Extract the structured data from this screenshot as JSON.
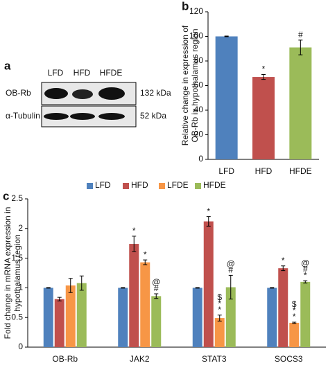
{
  "panel_labels": [
    "a",
    "b",
    "c"
  ],
  "blot": {
    "lanes": [
      "LFD",
      "HFD",
      "HFDE"
    ],
    "rows": [
      {
        "protein": "OB-Rb",
        "size": "132 kDa"
      },
      {
        "protein": "α-Tubulin",
        "size": "52 kDa"
      }
    ]
  },
  "chart_data": [
    {
      "type": "bar",
      "ylabel": [
        "Relative change in expression of",
        "OB-Rb in hypothalamus region"
      ],
      "categories": [
        "LFD",
        "HFD",
        "HFDE"
      ],
      "values": [
        100,
        67,
        91
      ],
      "errors": [
        0.3,
        2,
        6
      ],
      "colors": [
        "#4f81bd",
        "#c0504d",
        "#9bbb59"
      ],
      "markers": [
        null,
        [
          "*"
        ],
        [
          "#"
        ]
      ],
      "ylim": [
        0,
        120
      ],
      "yticks": [
        0,
        20,
        40,
        60,
        80,
        100,
        120
      ]
    },
    {
      "type": "grouped-bar",
      "ylabel": [
        "Fold change in mRNA expression in",
        "hypothalamus region"
      ],
      "categories": [
        "OB-Rb",
        "JAK2",
        "STAT3",
        "SOCS3"
      ],
      "series": [
        {
          "name": "LFD",
          "color": "#4f81bd",
          "values": [
            1,
            1,
            1,
            1
          ],
          "errors": [
            0.005,
            0.005,
            0.005,
            0.005
          ],
          "markers": [
            null,
            null,
            null,
            null
          ]
        },
        {
          "name": "HFD",
          "color": "#c0504d",
          "values": [
            0.81,
            1.74,
            2.12,
            1.33
          ],
          "errors": [
            0.03,
            0.13,
            0.08,
            0.04
          ],
          "markers": [
            null,
            [
              "*"
            ],
            [
              "*"
            ],
            [
              "*"
            ]
          ]
        },
        {
          "name": "LFDE",
          "color": "#f79646",
          "values": [
            1.04,
            1.43,
            0.49,
            0.41
          ],
          "errors": [
            0.12,
            0.04,
            0.05,
            0.01
          ],
          "markers": [
            null,
            [
              "*"
            ],
            [
              "$",
              "*",
              "*"
            ],
            [
              "$",
              "*",
              "*"
            ]
          ]
        },
        {
          "name": "HFDE",
          "color": "#9bbb59",
          "values": [
            1.08,
            0.86,
            1.01,
            1.1
          ],
          "errors": [
            0.12,
            0.04,
            0.2,
            0.02
          ],
          "markers": [
            null,
            [
              "@",
              "#"
            ],
            [
              "@",
              "#"
            ],
            [
              "@",
              "#",
              "*"
            ]
          ]
        }
      ],
      "ylim": [
        0,
        2.5
      ],
      "yticks": [
        0,
        0.5,
        1,
        1.5,
        2,
        2.5
      ]
    }
  ]
}
